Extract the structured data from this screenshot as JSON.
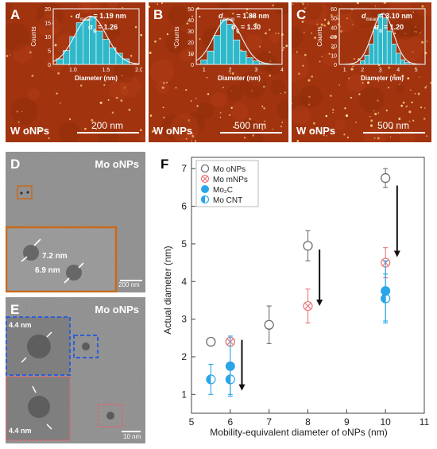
{
  "panels": {
    "A": {
      "letter": "A",
      "dmean": "= 1.19 nm",
      "sigma": "= 1.26",
      "label": "W oNPs",
      "scale": "200 nm",
      "hist": {
        "ylabel": "Counts",
        "xlabel": "Diameter (nm)",
        "yticks": [
          "20",
          "15",
          "10",
          "5",
          "0"
        ],
        "xticks": [
          "1.0",
          "1.5",
          "2.0"
        ],
        "ymax": 20,
        "xmin": 0.7,
        "xmax": 2.0,
        "bins": [
          0.8,
          0.9,
          1.0,
          1.1,
          1.2,
          1.3,
          1.4,
          1.5,
          1.6,
          1.7,
          1.8
        ],
        "counts": [
          2,
          5,
          10,
          15,
          16,
          17,
          12,
          9,
          6,
          4,
          2
        ]
      }
    },
    "B": {
      "letter": "B",
      "dmean": "= 1.88 nm",
      "sigma": "= 1.30",
      "label": "W oNPs",
      "scale": "500 nm",
      "hist": {
        "ylabel": "Counts",
        "xlabel": "Diameter (nm)",
        "yticks": [
          "50",
          "40",
          "30",
          "20",
          "10",
          "0"
        ],
        "xticks": [
          "1",
          "2",
          "3",
          "4"
        ],
        "ymax": 50,
        "xmin": 0.7,
        "xmax": 4.0,
        "bins": [
          1.0,
          1.25,
          1.5,
          1.75,
          2.0,
          2.25,
          2.5,
          2.75,
          3.0,
          3.25
        ],
        "counts": [
          4,
          12,
          26,
          40,
          36,
          22,
          12,
          6,
          3,
          1
        ]
      }
    },
    "C": {
      "letter": "C",
      "dmean": "= 3.10 nm",
      "sigma": "= 1.20",
      "label": "W oNPs",
      "scale": "500 nm",
      "hist": {
        "ylabel": "Counts",
        "xlabel": "Diameter (nm)",
        "yticks": [
          "60",
          "50",
          "40",
          "30",
          "20",
          "10",
          "0"
        ],
        "xticks": [
          "1",
          "2",
          "3",
          "4",
          "5"
        ],
        "ymax": 60,
        "xmin": 0.7,
        "xmax": 5.5,
        "bins": [
          2.0,
          2.25,
          2.5,
          2.75,
          3.0,
          3.25,
          3.5,
          3.75,
          4.0,
          4.25,
          4.5
        ],
        "counts": [
          4,
          10,
          22,
          40,
          54,
          50,
          36,
          22,
          12,
          5,
          2
        ]
      }
    },
    "D": {
      "letter": "D",
      "label": "Mo oNPs",
      "m1": "7.2 nm",
      "m2": "6.9 nm",
      "scale": "200 nm"
    },
    "E": {
      "letter": "E",
      "label": "Mo oNPs",
      "m1": "4.4 nm",
      "m2": "4.4 nm",
      "scale": "10 nm"
    }
  },
  "chart_data": {
    "type": "scatter",
    "letter": "F",
    "xlabel": "Mobility-equivalent diameter of oNPs (nm)",
    "ylabel": "Actual diameter (nm)",
    "xlim": [
      5,
      11
    ],
    "ylim": [
      0.5,
      7.3
    ],
    "xticks": [
      5,
      6,
      7,
      8,
      9,
      10,
      11
    ],
    "yticks": [
      1,
      2,
      3,
      4,
      5,
      6,
      7
    ],
    "legend_position": "top-left",
    "series": [
      {
        "name": "Mo oNPs",
        "marker": "open-circle",
        "color": "#707070",
        "points": [
          {
            "x": 5.5,
            "y": 2.4,
            "err": 0.1
          },
          {
            "x": 6.0,
            "y": 2.4,
            "err": 0.1
          },
          {
            "x": 7.0,
            "y": 2.85,
            "err": 0.5
          },
          {
            "x": 8.0,
            "y": 4.95,
            "err": 0.4
          },
          {
            "x": 10.0,
            "y": 6.75,
            "err": 0.25
          }
        ]
      },
      {
        "name": "Mo mNPs",
        "marker": "cross-circle",
        "color": "#e8787c",
        "points": [
          {
            "x": 6.0,
            "y": 2.4,
            "err": 0.1
          },
          {
            "x": 8.0,
            "y": 3.35,
            "err": 0.45
          },
          {
            "x": 10.0,
            "y": 4.5,
            "err": 0.4
          }
        ]
      },
      {
        "name": "Mo₂C",
        "marker": "filled-circle",
        "color": "#2aa6e8",
        "points": [
          {
            "x": 6.0,
            "y": 1.75,
            "err": 0.8
          },
          {
            "x": 10.0,
            "y": 3.75,
            "err": 0.8
          }
        ]
      },
      {
        "name": "Mo CNT",
        "marker": "half-circle",
        "color": "#2aa6e8",
        "points": [
          {
            "x": 5.5,
            "y": 1.4,
            "err": 0.4
          },
          {
            "x": 6.0,
            "y": 1.4,
            "err": 0.4
          },
          {
            "x": 10.0,
            "y": 3.55,
            "err": 0.65
          }
        ]
      }
    ],
    "arrows": [
      {
        "x": 6.3,
        "y1": 2.45,
        "y2": 1.1
      },
      {
        "x": 8.3,
        "y1": 4.85,
        "y2": 3.35
      },
      {
        "x": 10.3,
        "y1": 6.55,
        "y2": 4.65
      }
    ]
  }
}
